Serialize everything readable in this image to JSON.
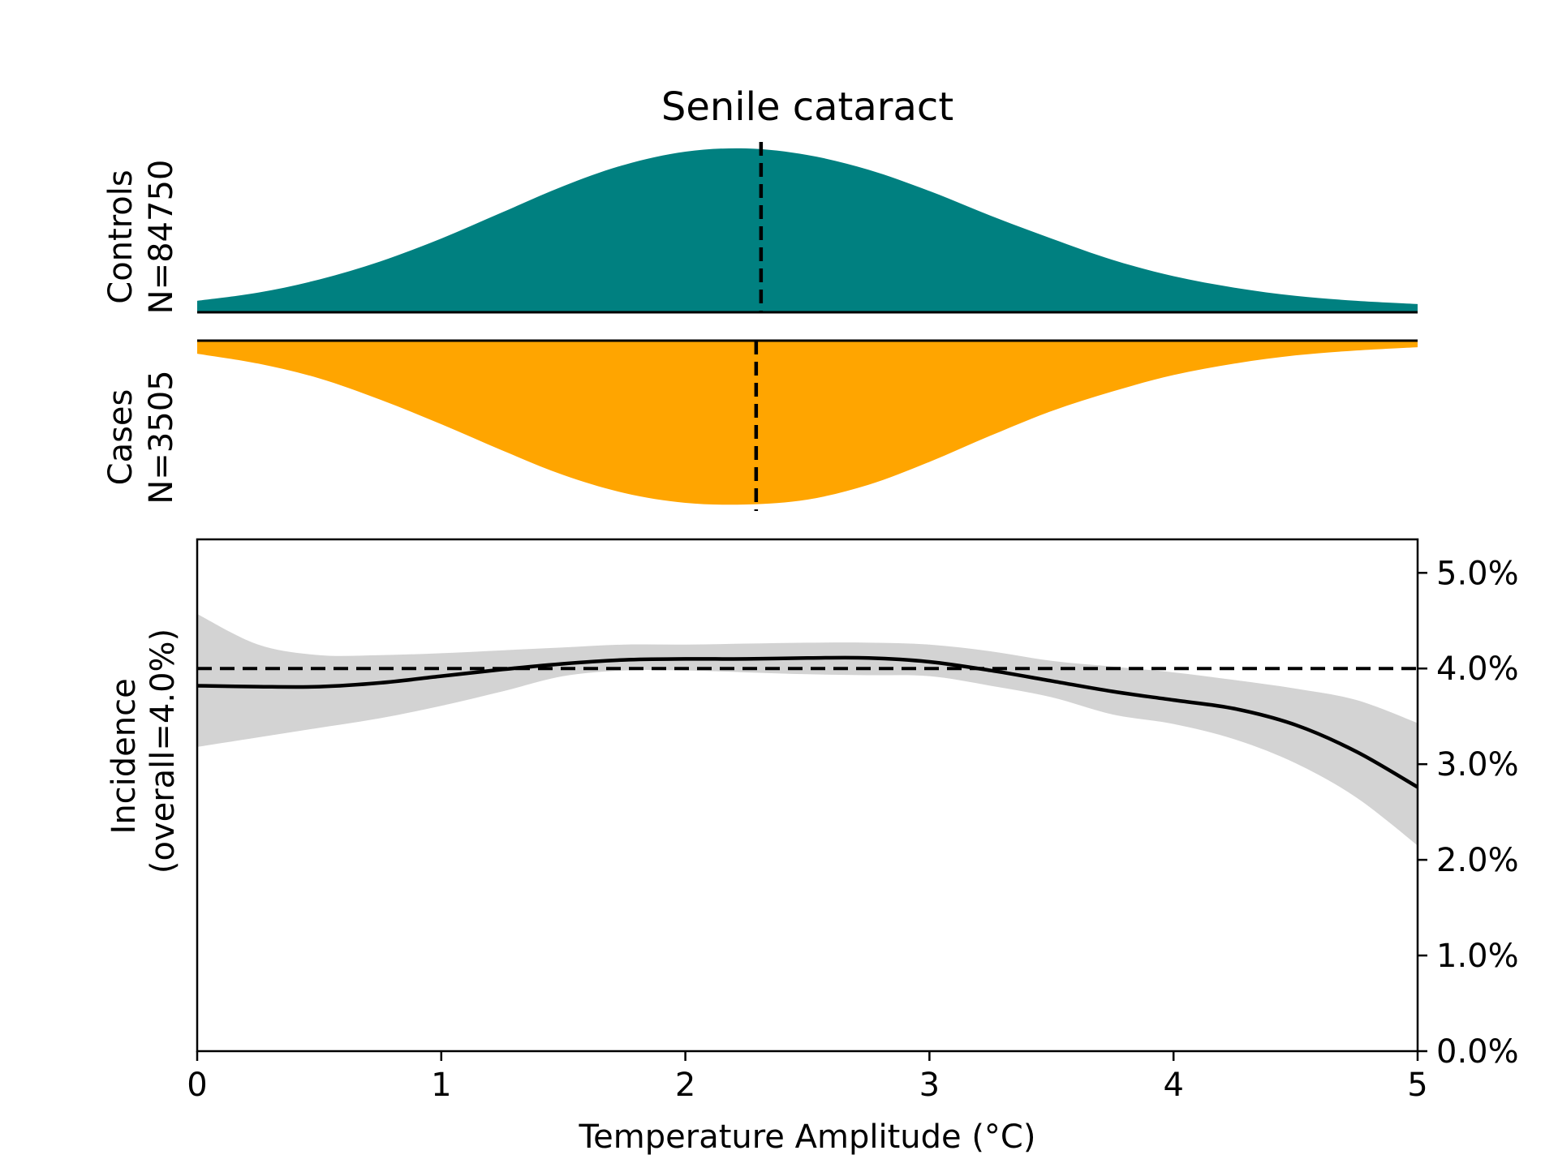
{
  "chart_data": {
    "type": "area",
    "title": "Senile cataract",
    "xlabel": "Temperature Amplitude (°C)",
    "xlim": [
      0,
      5
    ],
    "x_ticks": [
      "0",
      "1",
      "2",
      "3",
      "4",
      "5"
    ],
    "top_panel": {
      "panels": [
        {
          "name": "Controls",
          "n_label": "N=84750",
          "color": "#008080",
          "direction": "up",
          "median": 2.31,
          "x": [
            0,
            0.25,
            0.5,
            0.75,
            1.0,
            1.25,
            1.5,
            1.75,
            2.0,
            2.25,
            2.5,
            2.75,
            3.0,
            3.25,
            3.5,
            3.75,
            4.0,
            4.25,
            4.5,
            4.75,
            5.0
          ],
          "density": [
            0.07,
            0.12,
            0.2,
            0.31,
            0.45,
            0.61,
            0.77,
            0.9,
            0.98,
            1.0,
            0.96,
            0.87,
            0.74,
            0.59,
            0.45,
            0.32,
            0.22,
            0.15,
            0.1,
            0.07,
            0.05
          ]
        },
        {
          "name": "Cases",
          "n_label": "N=3505",
          "color": "#FFA500",
          "direction": "down",
          "median": 2.29,
          "x": [
            0,
            0.25,
            0.5,
            0.75,
            1.0,
            1.25,
            1.5,
            1.75,
            2.0,
            2.25,
            2.5,
            2.75,
            3.0,
            3.25,
            3.5,
            3.75,
            4.0,
            4.25,
            4.5,
            4.75,
            5.0
          ],
          "density": [
            0.08,
            0.14,
            0.23,
            0.36,
            0.51,
            0.67,
            0.82,
            0.93,
            0.99,
            1.0,
            0.97,
            0.88,
            0.74,
            0.58,
            0.43,
            0.31,
            0.21,
            0.14,
            0.09,
            0.06,
            0.04
          ]
        }
      ]
    },
    "bottom_panel": {
      "ylabel_line1": "Incidence",
      "ylabel_line2": "(overall=4.0%)",
      "ylim": [
        0,
        0.0535
      ],
      "y_ticks": [
        {
          "value": 0.0,
          "label": "0.0%"
        },
        {
          "value": 0.01,
          "label": "1.0%"
        },
        {
          "value": 0.02,
          "label": "2.0%"
        },
        {
          "value": 0.03,
          "label": "3.0%"
        },
        {
          "value": 0.04,
          "label": "4.0%"
        },
        {
          "value": 0.05,
          "label": "5.0%"
        }
      ],
      "overall": 0.04,
      "line_color": "#000000",
      "band_color": "#d3d3d3",
      "x": [
        0,
        0.25,
        0.5,
        0.75,
        1.0,
        1.25,
        1.5,
        1.75,
        2.0,
        2.25,
        2.5,
        2.75,
        3.0,
        3.25,
        3.5,
        3.75,
        4.0,
        4.25,
        4.5,
        4.75,
        5.0
      ],
      "y": [
        0.0382,
        0.0381,
        0.0381,
        0.0385,
        0.0392,
        0.0399,
        0.0405,
        0.0409,
        0.041,
        0.041,
        0.0411,
        0.0411,
        0.0407,
        0.0398,
        0.0387,
        0.0376,
        0.0367,
        0.0358,
        0.0341,
        0.0313,
        0.0276
      ],
      "lower": [
        0.0318,
        0.0328,
        0.0338,
        0.0348,
        0.0361,
        0.0376,
        0.0392,
        0.0398,
        0.0398,
        0.0396,
        0.0394,
        0.0393,
        0.0392,
        0.0382,
        0.037,
        0.0352,
        0.0342,
        0.0326,
        0.0301,
        0.0265,
        0.0215
      ],
      "upper": [
        0.0457,
        0.0425,
        0.0414,
        0.0414,
        0.0416,
        0.0419,
        0.0422,
        0.0425,
        0.0425,
        0.0426,
        0.0427,
        0.0427,
        0.0425,
        0.0418,
        0.0408,
        0.0402,
        0.0396,
        0.0388,
        0.0379,
        0.0367,
        0.0343
      ]
    }
  }
}
